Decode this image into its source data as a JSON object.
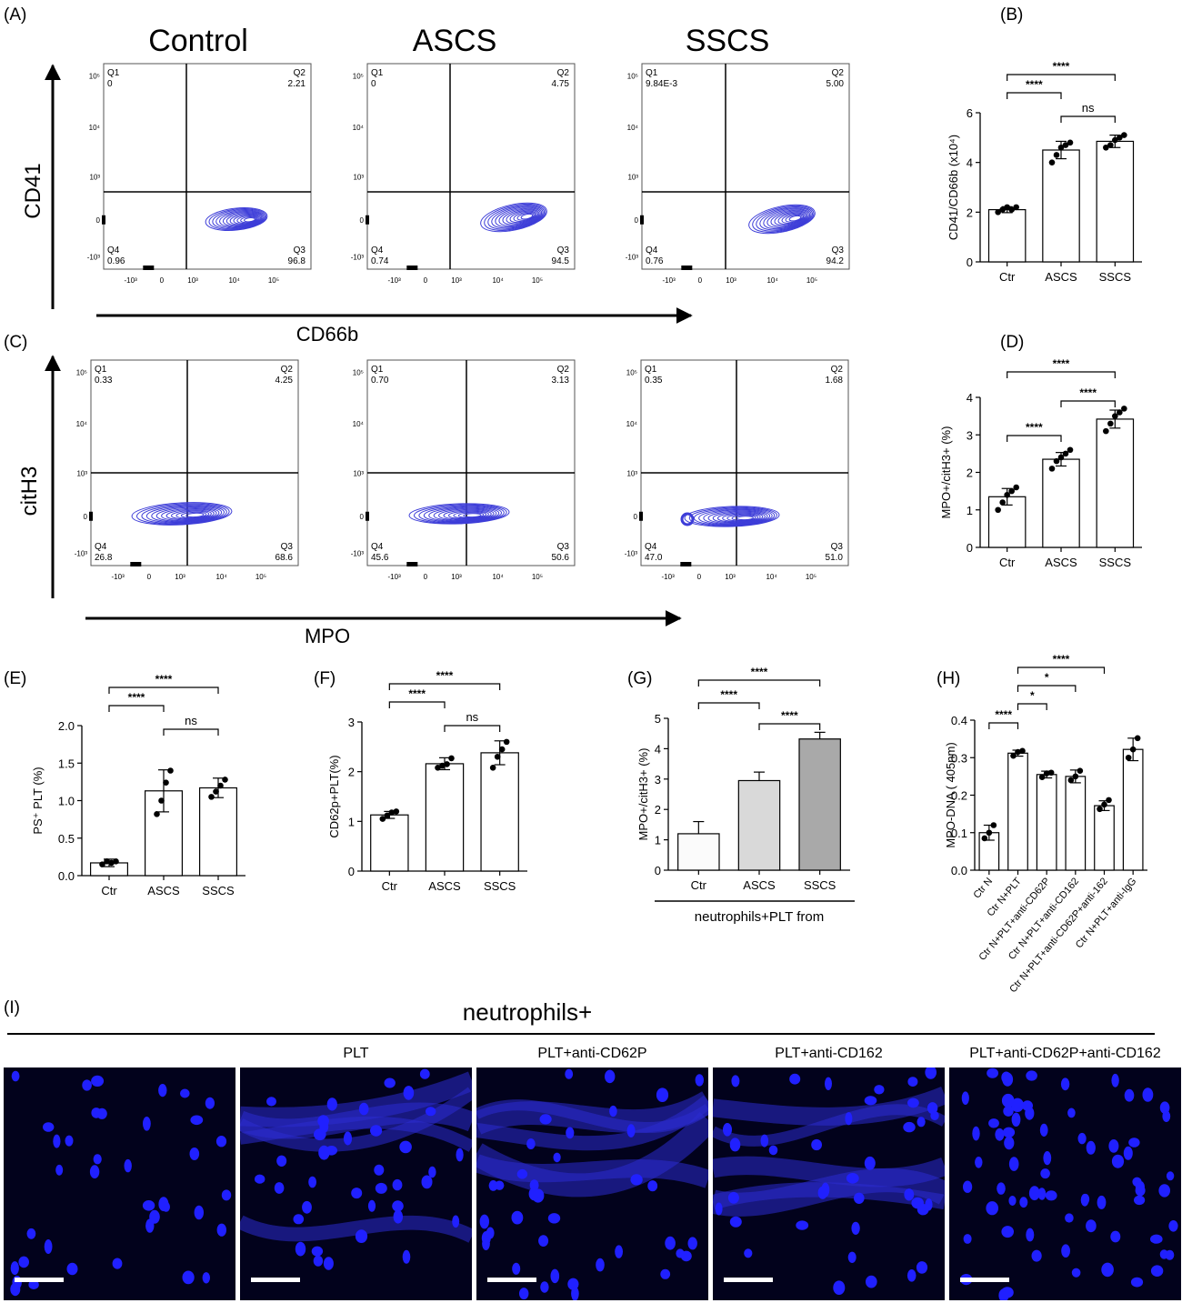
{
  "flow_row1": {
    "panel_label": "(A)",
    "y_axis": "CD41",
    "x_axis": "CD66b",
    "groups": [
      "Control",
      "ASCS",
      "SSCS"
    ],
    "plots": [
      {
        "q1_label": "Q1",
        "q1": "0",
        "q2_label": "Q2",
        "q2": "2.21",
        "q3_label": "Q3",
        "q3": "96.8",
        "q4_label": "Q4",
        "q4": "0.96"
      },
      {
        "q1_label": "Q1",
        "q1": "0",
        "q2_label": "Q2",
        "q2": "4.75",
        "q3_label": "Q3",
        "q3": "94.5",
        "q4_label": "Q4",
        "q4": "0.74"
      },
      {
        "q1_label": "Q1",
        "q1": "9.84E-3",
        "q2_label": "Q2",
        "q2": "5.00",
        "q3_label": "Q3",
        "q3": "94.2",
        "q4_label": "Q4",
        "q4": "0.76"
      }
    ]
  },
  "flow_row2": {
    "panel_label": "(C)",
    "y_axis": "citH3",
    "x_axis": "MPO",
    "plots": [
      {
        "q1_label": "Q1",
        "q1": "0.33",
        "q2_label": "Q2",
        "q2": "4.25",
        "q3_label": "Q3",
        "q3": "68.6",
        "q4_label": "Q4",
        "q4": "26.8"
      },
      {
        "q1_label": "Q1",
        "q1": "0.70",
        "q2_label": "Q2",
        "q2": "3.13",
        "q3_label": "Q3",
        "q3": "50.6",
        "q4_label": "Q4",
        "q4": "45.6"
      },
      {
        "q1_label": "Q1",
        "q1": "0.35",
        "q2_label": "Q2",
        "q2": "1.68",
        "q3_label": "Q3",
        "q3": "51.0",
        "q4_label": "Q4",
        "q4": "47.0"
      }
    ]
  },
  "flow_ticks": {
    "y": [
      "10⁵",
      "10⁴",
      "10³",
      "0",
      "-10³"
    ],
    "x": [
      "-10³",
      "0",
      "10³",
      "10⁴",
      "10⁵"
    ]
  },
  "microscopy": {
    "panel_label": "(I)",
    "header": "neutrophils+",
    "labels": [
      "",
      "PLT",
      "PLT+anti-CD62P",
      "PLT+anti-CD162",
      "PLT+anti-CD62P+anti-CD162"
    ]
  },
  "chart_data": [
    {
      "id": "B",
      "panel_label": "(B)",
      "type": "bar",
      "categories": [
        "Ctr",
        "ASCS",
        "SSCS"
      ],
      "values": [
        2.1,
        4.5,
        4.85
      ],
      "errors": [
        0.12,
        0.35,
        0.25
      ],
      "points": [
        [
          2.0,
          2.1,
          2.2,
          2.1,
          2.2
        ],
        [
          4.0,
          4.3,
          4.6,
          4.7,
          4.8
        ],
        [
          4.6,
          4.7,
          4.9,
          5.0,
          5.1
        ]
      ],
      "ylabel": "CD41/CD66b (x10⁴)",
      "ylim": [
        0,
        6
      ],
      "yticks": [
        0,
        2,
        4,
        6
      ],
      "tick_decimals": 0,
      "bar_colors": [
        "#ffffff",
        "#ffffff",
        "#ffffff"
      ],
      "significance": [
        {
          "from": 0,
          "to": 1,
          "label": "****"
        },
        {
          "from": 1,
          "to": 2,
          "label": "ns"
        },
        {
          "from": 0,
          "to": 2,
          "label": "****"
        }
      ]
    },
    {
      "id": "D",
      "panel_label": "(D)",
      "type": "bar",
      "categories": [
        "Ctr",
        "ASCS",
        "SSCS"
      ],
      "values": [
        1.35,
        2.35,
        3.42
      ],
      "errors": [
        0.22,
        0.18,
        0.24
      ],
      "points": [
        [
          1.0,
          1.2,
          1.4,
          1.5,
          1.6
        ],
        [
          2.1,
          2.3,
          2.4,
          2.5,
          2.6
        ],
        [
          3.1,
          3.3,
          3.5,
          3.6,
          3.7
        ]
      ],
      "ylabel": "MPO+/citH3+ (%)",
      "ylim": [
        0,
        4
      ],
      "yticks": [
        0,
        1,
        2,
        3,
        4
      ],
      "tick_decimals": 0,
      "bar_colors": [
        "#ffffff",
        "#ffffff",
        "#ffffff"
      ],
      "significance": [
        {
          "from": 0,
          "to": 1,
          "label": "****"
        },
        {
          "from": 1,
          "to": 2,
          "label": "****"
        },
        {
          "from": 0,
          "to": 2,
          "label": "****"
        }
      ]
    },
    {
      "id": "E",
      "panel_label": "(E)",
      "type": "bar",
      "categories": [
        "Ctr",
        "ASCS",
        "SSCS"
      ],
      "values": [
        0.17,
        1.13,
        1.17
      ],
      "errors": [
        0.05,
        0.28,
        0.13
      ],
      "points": [
        [
          0.15,
          0.19,
          0.17,
          0.19
        ],
        [
          0.82,
          1.0,
          1.24,
          1.4
        ],
        [
          1.05,
          1.12,
          1.2,
          1.28
        ]
      ],
      "ylabel": "PS⁺ PLT (%)",
      "ylim": [
        0,
        2.0
      ],
      "yticks": [
        0,
        0.5,
        1.0,
        1.5,
        2.0
      ],
      "tick_decimals": 1,
      "bar_colors": [
        "#ffffff",
        "#ffffff",
        "#ffffff"
      ],
      "significance": [
        {
          "from": 0,
          "to": 1,
          "label": "****"
        },
        {
          "from": 1,
          "to": 2,
          "label": "ns"
        },
        {
          "from": 0,
          "to": 2,
          "label": "****"
        }
      ]
    },
    {
      "id": "F",
      "panel_label": "(F)",
      "type": "bar",
      "categories": [
        "Ctr",
        "ASCS",
        "SSCS"
      ],
      "values": [
        1.13,
        2.16,
        2.38
      ],
      "errors": [
        0.07,
        0.12,
        0.24
      ],
      "points": [
        [
          1.05,
          1.12,
          1.18,
          1.2
        ],
        [
          2.08,
          2.12,
          2.15,
          2.27
        ],
        [
          2.08,
          2.3,
          2.45,
          2.6
        ]
      ],
      "ylabel": "CD62p+PLT(%)",
      "ylim": [
        0,
        3
      ],
      "yticks": [
        0,
        1,
        2,
        3
      ],
      "tick_decimals": 0,
      "bar_colors": [
        "#ffffff",
        "#ffffff",
        "#ffffff"
      ],
      "significance": [
        {
          "from": 0,
          "to": 1,
          "label": "****"
        },
        {
          "from": 1,
          "to": 2,
          "label": "ns"
        },
        {
          "from": 0,
          "to": 2,
          "label": "****"
        }
      ]
    },
    {
      "id": "G",
      "panel_label": "(G)",
      "type": "bar",
      "categories": [
        "Ctr",
        "ASCS",
        "SSCS"
      ],
      "values": [
        1.2,
        2.95,
        4.32
      ],
      "errors": [
        0.4,
        0.28,
        0.22
      ],
      "points": [],
      "ylabel": "MPO+/citH3+ (%)",
      "xlabel": "neutrophils+PLT from",
      "ylim": [
        0,
        5
      ],
      "yticks": [
        0,
        1,
        2,
        3,
        4,
        5
      ],
      "tick_decimals": 0,
      "bar_colors": [
        "#fbfbfb",
        "#d9d9d9",
        "#a9a9a9"
      ],
      "significance": [
        {
          "from": 0,
          "to": 1,
          "label": "****"
        },
        {
          "from": 1,
          "to": 2,
          "label": "****"
        },
        {
          "from": 0,
          "to": 2,
          "label": "****"
        }
      ]
    },
    {
      "id": "H",
      "panel_label": "(H)",
      "type": "bar",
      "categories": [
        "Ctr N",
        "Ctr N+PLT",
        "Ctr N+PLT+anti-CD62P",
        "Ctr N+PLT+anti-CD162",
        "Ctr N+PLT+anti-CD62P+anti-162",
        "Ctr N+PLT+anti-IgG"
      ],
      "values": [
        0.1,
        0.312,
        0.255,
        0.25,
        0.172,
        0.322
      ],
      "errors": [
        0.02,
        0.008,
        0.009,
        0.017,
        0.013,
        0.03
      ],
      "points": [
        [
          0.085,
          0.1,
          0.12
        ],
        [
          0.305,
          0.315,
          0.318
        ],
        [
          0.248,
          0.258,
          0.26
        ],
        [
          0.24,
          0.25,
          0.265
        ],
        [
          0.163,
          0.175,
          0.187
        ],
        [
          0.3,
          0.322,
          0.352
        ]
      ],
      "ylabel": "MPO-DNA ( 405nm)",
      "ylim": [
        0,
        0.4
      ],
      "yticks": [
        0,
        0.1,
        0.2,
        0.3,
        0.4
      ],
      "tick_decimals": 1,
      "bar_colors": [
        "#ffffff",
        "#ffffff",
        "#ffffff",
        "#ffffff",
        "#ffffff",
        "#ffffff"
      ],
      "significance": [
        {
          "from": 0,
          "to": 1,
          "label": "****"
        },
        {
          "from": 1,
          "to": 2,
          "label": "*"
        },
        {
          "from": 1,
          "to": 3,
          "label": "*"
        },
        {
          "from": 1,
          "to": 4,
          "label": "****"
        }
      ]
    }
  ]
}
